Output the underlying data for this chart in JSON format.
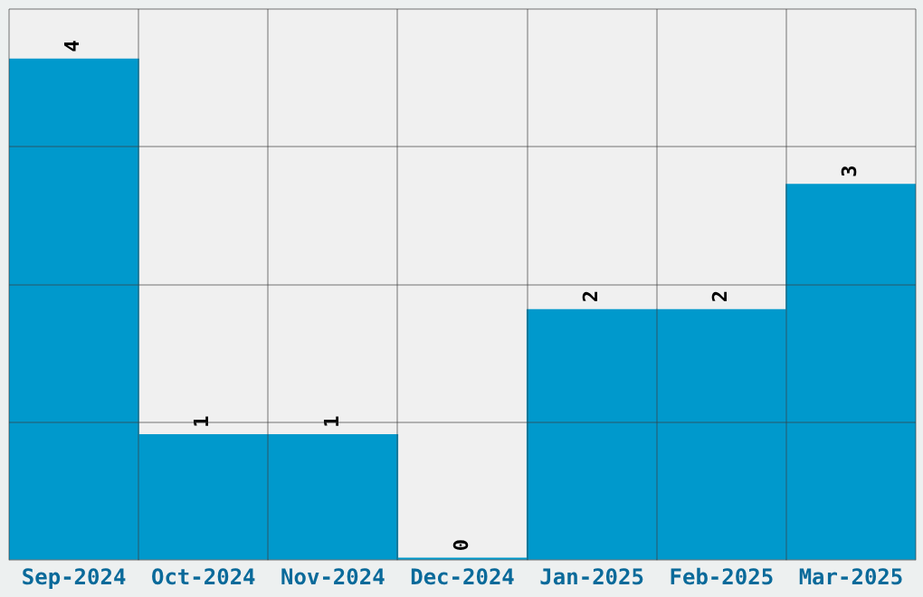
{
  "chart_data": {
    "type": "bar",
    "categories": [
      "Sep-2024",
      "Oct-2024",
      "Nov-2024",
      "Dec-2024",
      "Jan-2025",
      "Feb-2025",
      "Mar-2025"
    ],
    "values": [
      4,
      1,
      1,
      0,
      2,
      2,
      3
    ],
    "color": "#0099cc",
    "data_labels": true,
    "grid": true,
    "legend": false,
    "tick_labels": "x",
    "ylim": [
      0,
      4.4
    ],
    "yticks": [
      {
        "value": 0,
        "label": null
      },
      {
        "value": 1.1,
        "label": null
      },
      {
        "value": 2.2,
        "label": null
      },
      {
        "value": 3.3,
        "label": null
      },
      {
        "value": 4.4,
        "label": null
      }
    ]
  }
}
